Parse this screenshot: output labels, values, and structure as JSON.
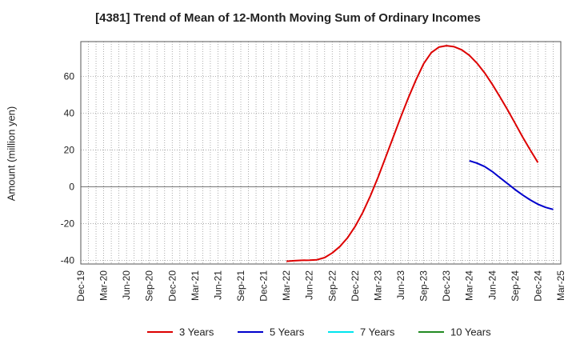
{
  "chart_data": {
    "type": "line",
    "title": "[4381]  Trend of Mean of 12-Month Moving Sum of Ordinary Incomes",
    "xlabel": "",
    "ylabel": "Amount (million yen)",
    "x_tick_labels": [
      "Dec-19",
      "Mar-20",
      "Jun-20",
      "Sep-20",
      "Dec-20",
      "Mar-21",
      "Jun-21",
      "Sep-21",
      "Dec-21",
      "Mar-22",
      "Jun-22",
      "Sep-22",
      "Dec-22",
      "Mar-23",
      "Jun-23",
      "Sep-23",
      "Dec-23",
      "Mar-24",
      "Jun-24",
      "Sep-24",
      "Dec-24",
      "Mar-25"
    ],
    "y_ticks": [
      -40,
      -20,
      0,
      20,
      40,
      60
    ],
    "ylim": [
      -42,
      79
    ],
    "grid": true,
    "legend_position": "bottom",
    "series": [
      {
        "name": "3 Years",
        "color": "#dd0000",
        "start_month_index": 27,
        "values": [
          -40.5,
          -40.2,
          -40.0,
          -39.9,
          -39.7,
          -38.5,
          -36.0,
          -32.5,
          -27.8,
          -21.6,
          -14.0,
          -5.0,
          5.0,
          16.0,
          27.0,
          38.0,
          48.5,
          58.2,
          67.0,
          73.0,
          76.0,
          76.8,
          76.2,
          74.5,
          71.5,
          67.3,
          62.0,
          55.8,
          49.0,
          42.0,
          34.5,
          27.0,
          20.0,
          13.2
        ]
      },
      {
        "name": "5 Years",
        "color": "#0000cc",
        "start_month_index": 51,
        "values": [
          14.2,
          12.9,
          11.0,
          8.3,
          5.0,
          1.8,
          -1.5,
          -4.5,
          -7.2,
          -9.5,
          -11.2,
          -12.3
        ]
      },
      {
        "name": "7 Years",
        "color": "#00e5ee",
        "start_month_index": null,
        "values": []
      },
      {
        "name": "10 Years",
        "color": "#228b22",
        "start_month_index": null,
        "values": []
      }
    ]
  }
}
